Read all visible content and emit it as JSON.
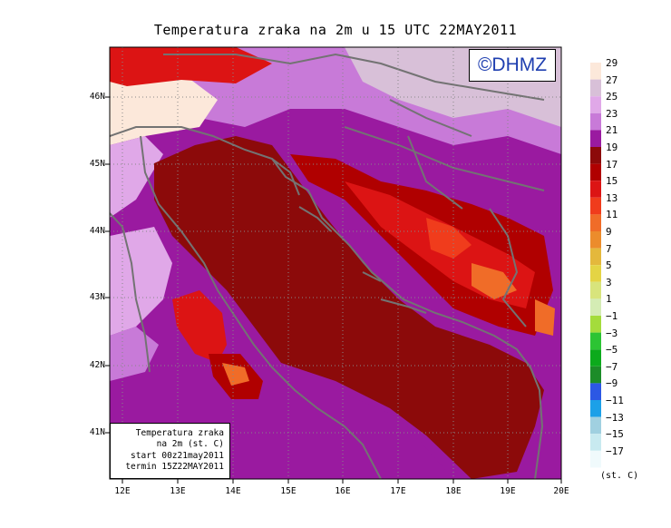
{
  "title": "Temperatura zraka na 2m u 15 UTC 22MAY2011",
  "logo": "©DHMZ",
  "info": {
    "line1": "Temperatura zraka",
    "line2": "na 2m (st. C)",
    "line3": "start 00z21may2011",
    "line4": "termin 15Z22MAY2011"
  },
  "lat_ticks": [
    "46N",
    "45N",
    "44N",
    "43N",
    "42N",
    "41N"
  ],
  "lon_ticks": [
    "12E",
    "13E",
    "14E",
    "15E",
    "16E",
    "17E",
    "18E",
    "19E",
    "20E"
  ],
  "legend": {
    "unit": "(st. C)",
    "labels": [
      "29",
      "27",
      "25",
      "23",
      "21",
      "19",
      "17",
      "15",
      "13",
      "11",
      "9",
      "7",
      "5",
      "3",
      "1",
      "−1",
      "−3",
      "−5",
      "−7",
      "−9",
      "−11",
      "−13",
      "−15",
      "−17"
    ],
    "colors": [
      "#fce8da",
      "#d8c0d8",
      "#e0a8e8",
      "#c87ad8",
      "#9a1aa0",
      "#8c0a0a",
      "#b00000",
      "#dc1414",
      "#f03c1c",
      "#f06c28",
      "#ec8c2c",
      "#e4b83c",
      "#e4d444",
      "#d8e47c",
      "#d4ecb4",
      "#a4dc3c",
      "#2cc434",
      "#0caa1c",
      "#1c8c28",
      "#2c58e4",
      "#1ca0e8",
      "#a0d0e0",
      "#c8eaf0",
      "#f0fafc"
    ]
  },
  "colors": {
    "sea": "#8c0a0a",
    "frame": "#000000",
    "coast": "#737373",
    "logo_text": "#1f3fb0"
  }
}
